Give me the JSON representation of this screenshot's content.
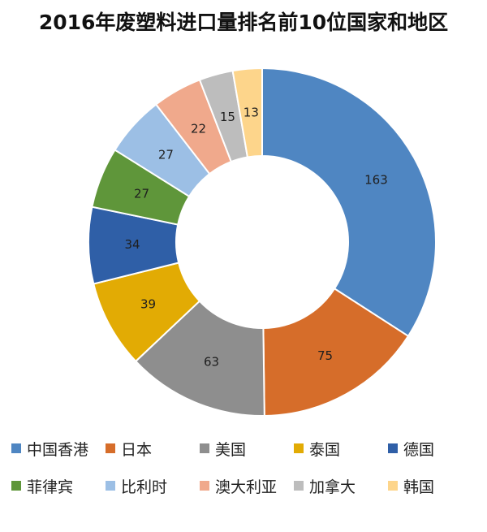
{
  "chart_data": {
    "type": "pie",
    "title": "2016年废塑料进口量排名前10位国家和地区",
    "categories": [
      "中国香港",
      "日本",
      "美国",
      "泰国",
      "德国",
      "菲律宾",
      "比利时",
      "澳大利亚",
      "加拿大",
      "韩国"
    ],
    "values": [
      163,
      75,
      63,
      39,
      34,
      27,
      27,
      22,
      15,
      13
    ],
    "colors": [
      "#4f86c2",
      "#d66d2a",
      "#8e8e8e",
      "#e2ab04",
      "#2f5fa7",
      "#5f963a",
      "#9cbfe5",
      "#f0a98c",
      "#bdbdbd",
      "#fdd58b"
    ],
    "donut": true,
    "start_angle": "12 o'clock",
    "direction": "clockwise",
    "legend_position": "bottom"
  }
}
